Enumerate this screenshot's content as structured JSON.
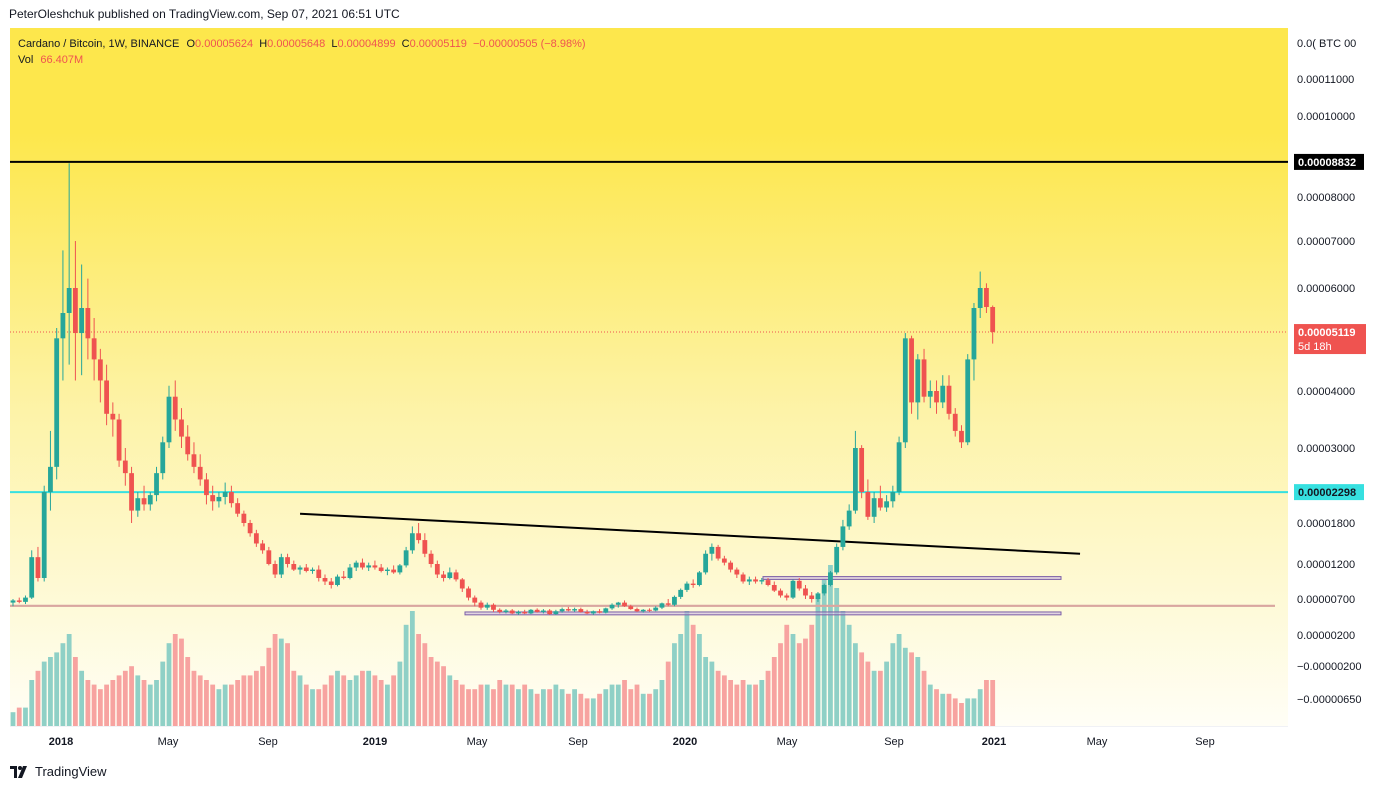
{
  "header": {
    "publisher": "PeterOleshchuk published on TradingView.com, Sep 07, 2021 06:51 UTC"
  },
  "legend": {
    "symbol": "Cardano / Bitcoin, 1W, BINANCE",
    "open_label": "O",
    "open": "0.00005624",
    "high_label": "H",
    "high": "0.00005648",
    "low_label": "L",
    "low": "0.00004899",
    "close_label": "C",
    "close": "0.00005119",
    "change": "−0.00000505 (−8.98%)",
    "vol_label": "Vol",
    "vol": "66.407M"
  },
  "footer": {
    "brand": "TradingView"
  },
  "colors": {
    "up": "#26a69a",
    "down": "#ef5350",
    "up_vol": "#8fd0c6",
    "down_vol": "#f7a3a0",
    "bg_top": "#fde74c",
    "bg_bottom": "#fffef6",
    "resistance_zone": "#d9a6a0",
    "support_line": "#36e0e0",
    "horizontal_line": "#000000",
    "current_price": "#ef5350"
  },
  "chart_data": {
    "type": "candlestick",
    "title": "Cardano / Bitcoin, 1W, BINANCE",
    "y_scale": "log",
    "y_unit": "BTC",
    "y_ticks": [
      "0.00011000",
      "0.00010000",
      "0.00008000",
      "0.00007000",
      "0.00006000",
      "0.00004000",
      "0.00003000",
      "0.00001800",
      "0.00001200",
      "0.00000700",
      "0.00000200",
      "−0.00000200",
      "−0.00000650"
    ],
    "y_top_label": "0.0( BTC 00",
    "x_ticks": [
      "2018",
      "May",
      "Sep",
      "2019",
      "May",
      "Sep",
      "2020",
      "May",
      "Sep",
      "2021",
      "May",
      "Sep"
    ],
    "price_labels": {
      "resistance_line": "0.00008832",
      "current": "0.00005119",
      "countdown": "5d 18h",
      "support_line": "0.00002298"
    },
    "candles": [
      [
        6.5e-06,
        7e-06,
        6e-06,
        6.8e-06
      ],
      [
        6.8e-06,
        7.2e-06,
        6.4e-06,
        6.6e-06
      ],
      [
        6.6e-06,
        7.5e-06,
        6.3e-06,
        7.2e-06
      ],
      [
        7.2e-06,
        1.4e-05,
        7e-06,
        1.3e-05
      ],
      [
        1.3e-05,
        1.45e-05,
        9.5e-06,
        1e-05
      ],
      [
        1e-05,
        2.4e-05,
        9.5e-06,
        2.3e-05
      ],
      [
        2.3e-05,
        3.3e-05,
        2e-05,
        2.7e-05
      ],
      [
        2.7e-05,
        5.2e-05,
        2.5e-05,
        5e-05
      ],
      [
        5e-05,
        6.8e-05,
        4.2e-05,
        5.5e-05
      ],
      [
        5.5e-05,
        8.8e-05,
        4.5e-05,
        6e-05
      ],
      [
        6e-05,
        7e-05,
        4.2e-05,
        5.1e-05
      ],
      [
        5.1e-05,
        6.5e-05,
        4.3e-05,
        5.6e-05
      ],
      [
        5.6e-05,
        6.2e-05,
        4.6e-05,
        5e-05
      ],
      [
        5e-05,
        5.4e-05,
        4.2e-05,
        4.6e-05
      ],
      [
        4.6e-05,
        4.8e-05,
        3.8e-05,
        4.2e-05
      ],
      [
        4.2e-05,
        4.5e-05,
        3.4e-05,
        3.6e-05
      ],
      [
        3.6e-05,
        3.8e-05,
        3.2e-05,
        3.5e-05
      ],
      [
        3.5e-05,
        3.6e-05,
        2.7e-05,
        2.8e-05
      ],
      [
        2.8e-05,
        3e-05,
        2.4e-05,
        2.6e-05
      ],
      [
        2.6e-05,
        2.7e-05,
        1.8e-05,
        2e-05
      ],
      [
        2e-05,
        2.3e-05,
        1.9e-05,
        2.2e-05
      ],
      [
        2.2e-05,
        2.4e-05,
        2e-05,
        2.1e-05
      ],
      [
        2.1e-05,
        2.3e-05,
        2e-05,
        2.25e-05
      ],
      [
        2.25e-05,
        2.7e-05,
        2.15e-05,
        2.6e-05
      ],
      [
        2.6e-05,
        3.2e-05,
        2.5e-05,
        3.1e-05
      ],
      [
        3.1e-05,
        4.1e-05,
        3e-05,
        3.9e-05
      ],
      [
        3.9e-05,
        4.2e-05,
        3.3e-05,
        3.5e-05
      ],
      [
        3.5e-05,
        3.7e-05,
        3e-05,
        3.2e-05
      ],
      [
        3.2e-05,
        3.4e-05,
        2.8e-05,
        2.9e-05
      ],
      [
        2.9e-05,
        3.1e-05,
        2.6e-05,
        2.7e-05
      ],
      [
        2.7e-05,
        2.9e-05,
        2.4e-05,
        2.5e-05
      ],
      [
        2.5e-05,
        2.6e-05,
        2.1e-05,
        2.25e-05
      ],
      [
        2.25e-05,
        2.4e-05,
        2e-05,
        2.15e-05
      ],
      [
        2.15e-05,
        2.3e-05,
        2.05e-05,
        2.22e-05
      ],
      [
        2.22e-05,
        2.45e-05,
        2.1e-05,
        2.3e-05
      ],
      [
        2.3e-05,
        2.4e-05,
        2.05e-05,
        2.12e-05
      ],
      [
        2.12e-05,
        2.2e-05,
        1.9e-05,
        1.95e-05
      ],
      [
        1.95e-05,
        2e-05,
        1.75e-05,
        1.8e-05
      ],
      [
        1.8e-05,
        1.85e-05,
        1.6e-05,
        1.65e-05
      ],
      [
        1.65e-05,
        1.7e-05,
        1.45e-05,
        1.5e-05
      ],
      [
        1.5e-05,
        1.55e-05,
        1.35e-05,
        1.4e-05
      ],
      [
        1.4e-05,
        1.45e-05,
        1.18e-05,
        1.2e-05
      ],
      [
        1.2e-05,
        1.25e-05,
        1e-05,
        1.05e-05
      ],
      [
        1.05e-05,
        1.35e-05,
        1e-05,
        1.3e-05
      ],
      [
        1.3e-05,
        1.35e-05,
        1.15e-05,
        1.2e-05
      ],
      [
        1.2e-05,
        1.25e-05,
        1.1e-05,
        1.12e-05
      ],
      [
        1.12e-05,
        1.18e-05,
        1.05e-05,
        1.15e-05
      ],
      [
        1.15e-05,
        1.2e-05,
        1.08e-05,
        1.1e-05
      ],
      [
        1.1e-05,
        1.15e-05,
        1.06e-05,
        1.12e-05
      ],
      [
        1.12e-05,
        1.18e-05,
        9.5e-06,
        1e-05
      ],
      [
        1e-05,
        1.05e-05,
        9e-06,
        9.5e-06
      ],
      [
        9.5e-06,
        1e-05,
        8.5e-06,
        9e-06
      ],
      [
        9e-06,
        1.05e-05,
        8.8e-06,
        1.02e-05
      ],
      [
        1.02e-05,
        1.1e-05,
        9.8e-06,
        1e-05
      ],
      [
        1e-05,
        1.2e-05,
        9.8e-06,
        1.15e-05
      ],
      [
        1.15e-05,
        1.25e-05,
        1.1e-05,
        1.22e-05
      ],
      [
        1.22e-05,
        1.28e-05,
        1.12e-05,
        1.15e-05
      ],
      [
        1.15e-05,
        1.22e-05,
        1.1e-05,
        1.18e-05
      ],
      [
        1.18e-05,
        1.25e-05,
        1.12e-05,
        1.15e-05
      ],
      [
        1.15e-05,
        1.2e-05,
        1.08e-05,
        1.1e-05
      ],
      [
        1.1e-05,
        1.15e-05,
        1.04e-05,
        1.12e-05
      ],
      [
        1.12e-05,
        1.18e-05,
        1.06e-05,
        1.08e-05
      ],
      [
        1.08e-05,
        1.2e-05,
        1.05e-05,
        1.18e-05
      ],
      [
        1.18e-05,
        1.45e-05,
        1.15e-05,
        1.4e-05
      ],
      [
        1.4e-05,
        1.75e-05,
        1.35e-05,
        1.65e-05
      ],
      [
        1.65e-05,
        1.8e-05,
        1.5e-05,
        1.55e-05
      ],
      [
        1.55e-05,
        1.65e-05,
        1.3e-05,
        1.35e-05
      ],
      [
        1.35e-05,
        1.4e-05,
        1.15e-05,
        1.2e-05
      ],
      [
        1.2e-05,
        1.25e-05,
        1e-05,
        1.05e-05
      ],
      [
        1.05e-05,
        1.1e-05,
        9.5e-06,
        1e-05
      ],
      [
        1e-05,
        1.15e-05,
        9.8e-06,
        1.08e-05
      ],
      [
        1.08e-05,
        1.12e-05,
        9.5e-06,
        9.8e-06
      ],
      [
        9.8e-06,
        1e-05,
        8e-06,
        8.5e-06
      ],
      [
        8.5e-06,
        8.8e-06,
        6.8e-06,
        7.2e-06
      ],
      [
        7.2e-06,
        7.5e-06,
        6e-06,
        6.5e-06
      ],
      [
        6.5e-06,
        6.8e-06,
        5.5e-06,
        5.8e-06
      ],
      [
        5.8e-06,
        6.5e-06,
        5.5e-06,
        6.2e-06
      ],
      [
        6.2e-06,
        6.4e-06,
        5.2e-06,
        5.5e-06
      ],
      [
        5.5e-06,
        5.7e-06,
        5e-06,
        5.2e-06
      ],
      [
        5.2e-06,
        5.6e-06,
        5e-06,
        5.4e-06
      ],
      [
        5.4e-06,
        5.6e-06,
        4.9e-06,
        5e-06
      ],
      [
        5e-06,
        5.4e-06,
        4.8e-06,
        5.2e-06
      ],
      [
        5.2e-06,
        5.5e-06,
        4.9e-06,
        5e-06
      ],
      [
        5e-06,
        5.6e-06,
        4.9e-06,
        5.5e-06
      ],
      [
        5.5e-06,
        5.7e-06,
        5.1e-06,
        5.2e-06
      ],
      [
        5.2e-06,
        5.6e-06,
        5e-06,
        5.4e-06
      ],
      [
        5.4e-06,
        5.6e-06,
        4.8e-06,
        4.9e-06
      ],
      [
        4.9e-06,
        5.5e-06,
        4.8e-06,
        5.3e-06
      ],
      [
        5.3e-06,
        5.8e-06,
        5.1e-06,
        5.6e-06
      ],
      [
        5.6e-06,
        5.9e-06,
        5.3e-06,
        5.4e-06
      ],
      [
        5.4e-06,
        5.8e-06,
        5.2e-06,
        5.6e-06
      ],
      [
        5.6e-06,
        5.8e-06,
        5.1e-06,
        5.2e-06
      ],
      [
        5.2e-06,
        5.5e-06,
        4.9e-06,
        5e-06
      ],
      [
        5e-06,
        5.4e-06,
        4.8e-06,
        5.3e-06
      ],
      [
        5.3e-06,
        5.6e-06,
        5e-06,
        5.1e-06
      ],
      [
        5.1e-06,
        5.8e-06,
        5e-06,
        5.7e-06
      ],
      [
        5.7e-06,
        6.4e-06,
        5.5e-06,
        6.2e-06
      ],
      [
        6.2e-06,
        6.6e-06,
        5.8e-06,
        6.5e-06
      ],
      [
        6.5e-06,
        6.8e-06,
        5.9e-06,
        6e-06
      ],
      [
        6e-06,
        6.2e-06,
        5.5e-06,
        5.6e-06
      ],
      [
        5.6e-06,
        5.8e-06,
        5.2e-06,
        5.3e-06
      ],
      [
        5.3e-06,
        5.6e-06,
        5.1e-06,
        5.5e-06
      ],
      [
        5.5e-06,
        5.7e-06,
        5.2e-06,
        5.4e-06
      ],
      [
        5.4e-06,
        6e-06,
        5.3e-06,
        5.8e-06
      ],
      [
        5.8e-06,
        6.5e-06,
        5.6e-06,
        6.4e-06
      ],
      [
        6.4e-06,
        7e-06,
        6e-06,
        6.2e-06
      ],
      [
        6.2e-06,
        7.5e-06,
        6e-06,
        7.3e-06
      ],
      [
        7.3e-06,
        8.5e-06,
        7e-06,
        8.3e-06
      ],
      [
        8.3e-06,
        9.5e-06,
        8e-06,
        9.2e-06
      ],
      [
        9.2e-06,
        9.8e-06,
        8.6e-06,
        9e-06
      ],
      [
        9e-06,
        1.1e-05,
        8.8e-06,
        1.08e-05
      ],
      [
        1.08e-05,
        1.4e-05,
        1.05e-05,
        1.35e-05
      ],
      [
        1.35e-05,
        1.5e-05,
        1.25e-05,
        1.45e-05
      ],
      [
        1.45e-05,
        1.48e-05,
        1.25e-05,
        1.28e-05
      ],
      [
        1.28e-05,
        1.32e-05,
        1.18e-05,
        1.22e-05
      ],
      [
        1.22e-05,
        1.25e-05,
        1.08e-05,
        1.12e-05
      ],
      [
        1.12e-05,
        1.15e-05,
        1e-05,
        1.05e-05
      ],
      [
        1.05e-05,
        1.08e-05,
        9.2e-06,
        9.5e-06
      ],
      [
        9.5e-06,
        1.02e-05,
        9e-06,
        9.8e-06
      ],
      [
        9.8e-06,
        1.02e-05,
        9.2e-06,
        9.5e-06
      ],
      [
        9.5e-06,
        1e-05,
        9.1e-06,
        9.7e-06
      ],
      [
        9.7e-06,
        1e-05,
        8.8e-06,
        9e-06
      ],
      [
        9e-06,
        9.5e-06,
        8e-06,
        8.2e-06
      ],
      [
        8.2e-06,
        8.5e-06,
        7.2e-06,
        7.5e-06
      ],
      [
        7.5e-06,
        7.8e-06,
        6.8e-06,
        7.2e-06
      ],
      [
        7.2e-06,
        9.8e-06,
        7e-06,
        9.6e-06
      ],
      [
        9.6e-06,
        1e-05,
        8.2e-06,
        8.5e-06
      ],
      [
        8.5e-06,
        9e-06,
        7e-06,
        7.5e-06
      ],
      [
        7.5e-06,
        8e-06,
        6.5e-06,
        7e-06
      ],
      [
        7e-06,
        8e-06,
        6.6e-06,
        7.8e-06
      ],
      [
        7.8e-06,
        9.2e-06,
        7.5e-06,
        9e-06
      ],
      [
        9e-06,
        1.1e-05,
        8.8e-06,
        1.08e-05
      ],
      [
        1.08e-05,
        1.5e-05,
        1.05e-05,
        1.45e-05
      ],
      [
        1.45e-05,
        1.85e-05,
        1.4e-05,
        1.75e-05
      ],
      [
        1.75e-05,
        2.1e-05,
        1.7e-05,
        2e-05
      ],
      [
        2e-05,
        3.3e-05,
        1.95e-05,
        3e-05
      ],
      [
        3e-05,
        3.05e-05,
        2.2e-05,
        2.3e-05
      ],
      [
        2.3e-05,
        2.5e-05,
        1.85e-05,
        1.9e-05
      ],
      [
        1.9e-05,
        2.3e-05,
        1.8e-05,
        2.2e-05
      ],
      [
        2.2e-05,
        2.4e-05,
        2e-05,
        2.05e-05
      ],
      [
        2.05e-05,
        2.25e-05,
        1.98e-05,
        2.15e-05
      ],
      [
        2.15e-05,
        2.4e-05,
        2.05e-05,
        2.3e-05
      ],
      [
        2.3e-05,
        3.2e-05,
        2.25e-05,
        3.1e-05
      ],
      [
        3.1e-05,
        5.1e-05,
        3e-05,
        5e-05
      ],
      [
        5e-05,
        5.05e-05,
        3.6e-05,
        3.8e-05
      ],
      [
        3.8e-05,
        4.7e-05,
        3.5e-05,
        4.6e-05
      ],
      [
        4.6e-05,
        4.8e-05,
        3.8e-05,
        3.9e-05
      ],
      [
        3.9e-05,
        4.2e-05,
        3.7e-05,
        4e-05
      ],
      [
        4e-05,
        4.2e-05,
        3.6e-05,
        3.8e-05
      ],
      [
        3.8e-05,
        4.3e-05,
        3.7e-05,
        4.1e-05
      ],
      [
        4.1e-05,
        4.3e-05,
        3.5e-05,
        3.6e-05
      ],
      [
        3.6e-05,
        3.7e-05,
        3.2e-05,
        3.3e-05
      ],
      [
        3.3e-05,
        3.4e-05,
        3e-05,
        3.1e-05
      ],
      [
        3.1e-05,
        4.7e-05,
        3.05e-05,
        4.6e-05
      ],
      [
        4.6e-05,
        5.7e-05,
        4.2e-05,
        5.6e-05
      ],
      [
        5.6e-05,
        6.35e-05,
        5.4e-05,
        6e-05
      ],
      [
        6e-05,
        6.1e-05,
        5.5e-05,
        5.62e-05
      ],
      [
        5.62e-05,
        5.65e-05,
        4.9e-05,
        5.12e-05
      ]
    ],
    "volumes": [
      3,
      4,
      4,
      10,
      12,
      14,
      15,
      16,
      18,
      20,
      15,
      12,
      10,
      9,
      8,
      9,
      10,
      11,
      12,
      13,
      11,
      10,
      9,
      10,
      14,
      18,
      20,
      19,
      15,
      12,
      11,
      10,
      9,
      8,
      9,
      9,
      10,
      11,
      11,
      12,
      13,
      17,
      20,
      19,
      18,
      12,
      11,
      9,
      8,
      8,
      9,
      11,
      12,
      11,
      10,
      11,
      12,
      12,
      11,
      10,
      9,
      11,
      14,
      22,
      25,
      20,
      18,
      15,
      14,
      13,
      11,
      10,
      9,
      8,
      8,
      9,
      9,
      8,
      10,
      9,
      9,
      8,
      9,
      8,
      7,
      8,
      8,
      9,
      8,
      7,
      8,
      7,
      6,
      6,
      7,
      8,
      9,
      9,
      10,
      8,
      9,
      7,
      7,
      8,
      10,
      14,
      18,
      20,
      25,
      22,
      20,
      15,
      14,
      12,
      11,
      10,
      9,
      10,
      9,
      9,
      10,
      12,
      15,
      18,
      22,
      20,
      18,
      19,
      22,
      28,
      32,
      35,
      30,
      25,
      22,
      18,
      16,
      14,
      12,
      12,
      14,
      18,
      20,
      17,
      16,
      15,
      12,
      9,
      8,
      7,
      7,
      6,
      5,
      6,
      6,
      8,
      10,
      10,
      2
    ],
    "annotations": {
      "resistance_zone": [
        5.9e-06,
        6.2e-06
      ],
      "horizontal_line": 8.832e-05,
      "support_line": 2.298e-05,
      "current_price": 5.119e-05,
      "trendline": [
        [
          46,
          1.95e-05
        ],
        [
          171,
          1.35e-05
        ]
      ],
      "box_upper": [
        9.8e-06,
        1.02e-05
      ],
      "box_lower": [
        4.8e-06,
        5.2e-06
      ]
    }
  }
}
